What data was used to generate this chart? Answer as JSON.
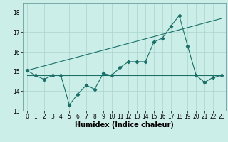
{
  "title": "",
  "xlabel": "Humidex (Indice chaleur)",
  "background_color": "#cceee8",
  "grid_color": "#aad4cc",
  "line_color": "#1a7068",
  "x_values": [
    0,
    1,
    2,
    3,
    4,
    5,
    6,
    7,
    8,
    9,
    10,
    11,
    12,
    13,
    14,
    15,
    16,
    17,
    18,
    19,
    20,
    21,
    22,
    23
  ],
  "line1_y": [
    15.05,
    14.8,
    14.6,
    14.8,
    14.8,
    13.3,
    13.85,
    14.3,
    14.1,
    14.9,
    14.8,
    15.2,
    15.5,
    15.5,
    15.5,
    16.5,
    16.7,
    17.3,
    17.85,
    16.3,
    14.8,
    14.45,
    14.7,
    14.8
  ],
  "line2_y": [
    14.8,
    14.8,
    14.8,
    14.8,
    14.8,
    14.8,
    14.8,
    14.8,
    14.8,
    14.8,
    14.8,
    14.8,
    14.8,
    14.8,
    14.8,
    14.8,
    14.8,
    14.8,
    14.8,
    14.8,
    14.8,
    14.8,
    14.8,
    14.8
  ],
  "line3_x": [
    0,
    23
  ],
  "line3_y": [
    15.05,
    17.7
  ],
  "ylim": [
    13,
    18.5
  ],
  "xlim": [
    -0.5,
    23.5
  ],
  "yticks": [
    13,
    14,
    15,
    16,
    17,
    18
  ],
  "xticks": [
    0,
    1,
    2,
    3,
    4,
    5,
    6,
    7,
    8,
    9,
    10,
    11,
    12,
    13,
    14,
    15,
    16,
    17,
    18,
    19,
    20,
    21,
    22,
    23
  ],
  "title_fontsize": 7,
  "label_fontsize": 7,
  "tick_fontsize": 5.5
}
